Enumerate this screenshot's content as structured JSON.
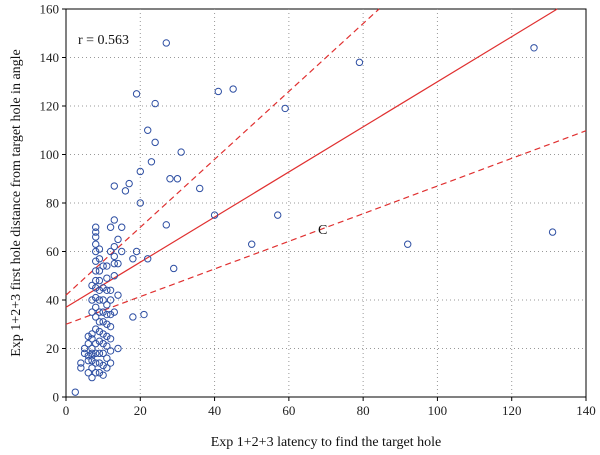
{
  "chart_data": {
    "type": "scatter",
    "xlabel": "Exp 1+2+3 latency to find the target hole",
    "ylabel": "Exp 1+2+3 first hole distance from target hole in angle",
    "xlim": [
      0,
      140
    ],
    "ylim": [
      0,
      160
    ],
    "x_ticks": [
      "0",
      "20",
      "40",
      "60",
      "80",
      "100",
      "120",
      "140"
    ],
    "y_ticks": [
      "0",
      "20",
      "40",
      "60",
      "80",
      "100",
      "120",
      "140",
      "160"
    ],
    "grid": "dotted",
    "annotations": {
      "correlation": "r = 0.563",
      "panel_label": "C"
    },
    "regression": {
      "line": {
        "intercept": 37,
        "slope": 0.93
      },
      "ci_upper": {
        "intercept": 42,
        "slope": 1.4
      },
      "ci_lower": {
        "intercept": 30,
        "slope": 0.57
      }
    },
    "colors": {
      "points": "#2e4fa3",
      "regression": "#e03030",
      "grid": "#999999"
    },
    "series": [
      {
        "x": [
          2.5,
          4,
          4,
          5,
          5,
          6,
          6,
          6,
          6,
          6,
          7,
          7,
          7,
          7,
          7,
          7,
          7,
          7,
          7,
          7,
          7,
          8,
          8,
          8,
          8,
          8,
          8,
          8,
          8,
          8,
          8,
          8,
          8,
          8,
          8,
          8,
          8,
          8,
          9,
          9,
          9,
          9,
          9,
          9,
          9,
          9,
          9,
          9,
          9,
          9,
          9,
          10,
          10,
          10,
          10,
          10,
          10,
          10,
          10,
          10,
          10,
          11,
          11,
          11,
          11,
          11,
          11,
          11,
          11,
          11,
          11,
          12,
          12,
          12,
          12,
          12,
          12,
          12,
          12,
          12,
          13,
          13,
          13,
          13,
          13,
          13,
          13,
          14,
          14,
          14,
          14,
          15,
          15,
          16,
          17,
          18,
          18,
          19,
          19,
          20,
          20,
          21,
          22,
          22,
          23,
          24,
          24,
          27,
          27,
          28,
          29,
          30,
          31,
          36,
          40,
          41,
          45,
          50,
          57,
          59,
          79,
          92,
          126,
          131
        ],
        "y": [
          2,
          12,
          14,
          18,
          20,
          10,
          15,
          17,
          22,
          25,
          8,
          12,
          15,
          17,
          18,
          20,
          24,
          26,
          35,
          40,
          46,
          10,
          14,
          18,
          22,
          28,
          33,
          37,
          41,
          45,
          48,
          52,
          56,
          60,
          63,
          66,
          68,
          70,
          10,
          14,
          18,
          23,
          27,
          31,
          35,
          40,
          44,
          48,
          52,
          57,
          61,
          9,
          13,
          18,
          22,
          26,
          31,
          35,
          40,
          45,
          54,
          12,
          16,
          21,
          25,
          30,
          34,
          38,
          44,
          49,
          54,
          14,
          19,
          24,
          29,
          34,
          40,
          44,
          60,
          70,
          35,
          50,
          55,
          58,
          62,
          73,
          87,
          20,
          42,
          55,
          65,
          60,
          70,
          85,
          88,
          33,
          57,
          60,
          125,
          80,
          93,
          34,
          110,
          57,
          97,
          105,
          121,
          71,
          146,
          90,
          53,
          90,
          101,
          86,
          75,
          126,
          127,
          63,
          75,
          119,
          138,
          63,
          144,
          68
        ]
      }
    ]
  }
}
